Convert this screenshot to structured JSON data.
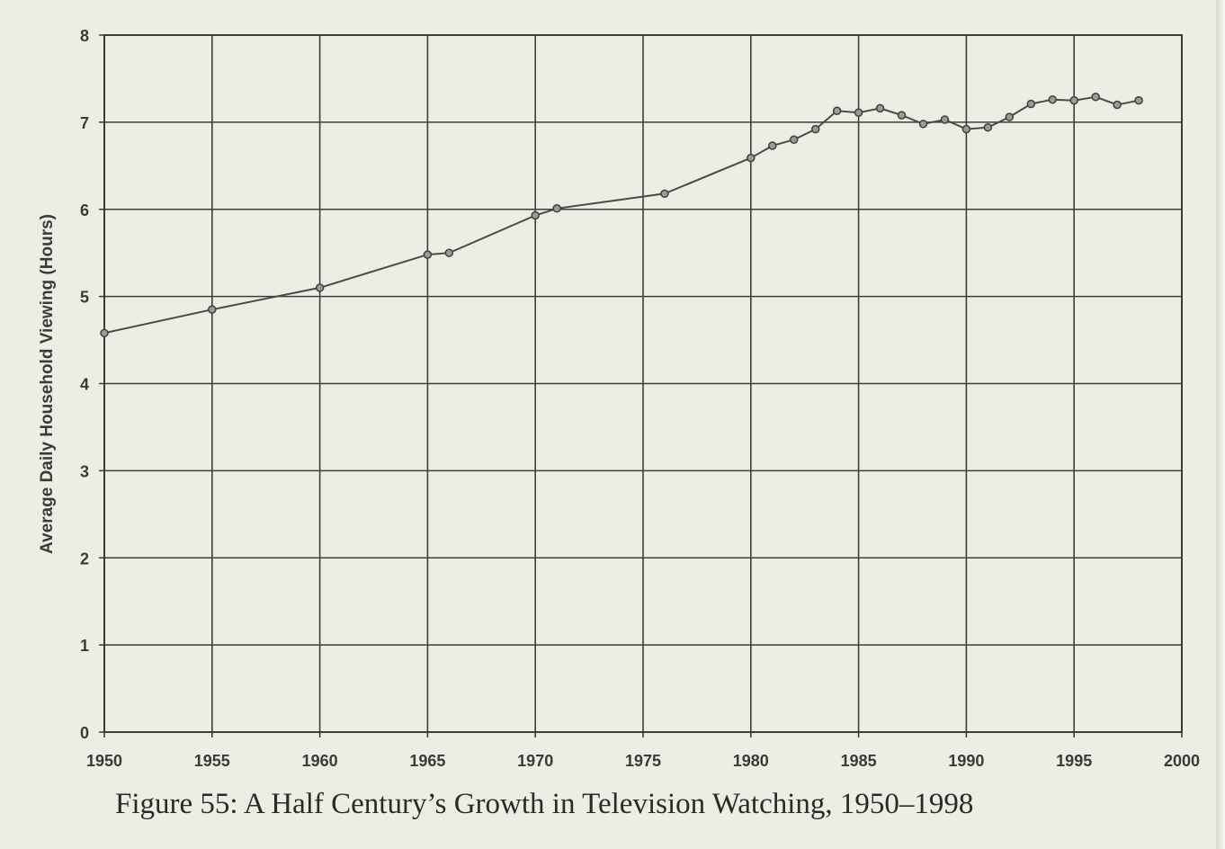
{
  "caption": "Figure 55: A Half Century’s Growth in Television Watching, 1950–1998",
  "chart_data": {
    "type": "line",
    "title": "",
    "xlabel": "",
    "ylabel": "Average Daily Household Viewing (Hours)",
    "xlim": [
      1950,
      2000
    ],
    "ylim": [
      0,
      8
    ],
    "x_ticks": [
      "1950",
      "1955",
      "1960",
      "1965",
      "1970",
      "1975",
      "1980",
      "1985",
      "1990",
      "1995",
      "2000"
    ],
    "y_ticks": [
      "0",
      "1",
      "2",
      "3",
      "4",
      "5",
      "6",
      "7",
      "8"
    ],
    "grid": true,
    "legend": "none",
    "line_color": "#4a4a4a",
    "series": [
      {
        "x": [
          1950,
          1955,
          1960,
          1965,
          1966,
          1970,
          1971,
          1976,
          1980,
          1981,
          1982,
          1983,
          1984,
          1985,
          1986,
          1987,
          1988,
          1989,
          1990,
          1991,
          1992,
          1993,
          1994,
          1995,
          1996,
          1997,
          1998
        ],
        "y": [
          4.58,
          4.85,
          5.1,
          5.48,
          5.5,
          5.93,
          6.01,
          6.18,
          6.59,
          6.73,
          6.8,
          6.92,
          7.13,
          7.11,
          7.16,
          7.08,
          6.98,
          7.03,
          6.92,
          6.94,
          7.06,
          7.21,
          7.26,
          7.25,
          7.29,
          7.2,
          7.25
        ]
      }
    ]
  }
}
